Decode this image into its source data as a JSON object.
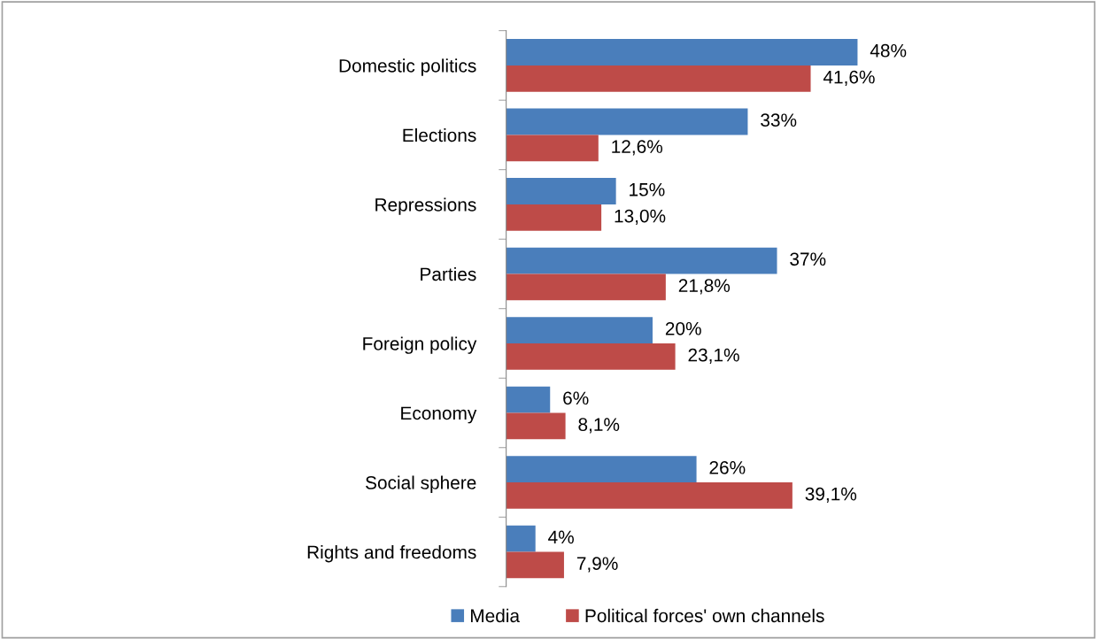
{
  "chart_data": {
    "type": "bar",
    "orientation": "horizontal",
    "categories": [
      "Domestic politics",
      "Elections",
      "Repressions",
      "Parties",
      "Foreign policy",
      "Economy",
      "Social sphere",
      "Rights and freedoms"
    ],
    "series": [
      {
        "name": "Media",
        "color": "#4a7ebb",
        "values": [
          48,
          33,
          15,
          37,
          20,
          6,
          26,
          4
        ],
        "value_labels": [
          "48%",
          "33%",
          "15%",
          "37%",
          "20%",
          "6%",
          "26%",
          "4%"
        ]
      },
      {
        "name": "Political forces' own channels",
        "color": "#be4b48",
        "values": [
          41.6,
          12.6,
          13.0,
          21.8,
          23.1,
          8.1,
          39.1,
          7.9
        ],
        "value_labels": [
          "41,6%",
          "12,6%",
          "13,0%",
          "21,8%",
          "23,1%",
          "8,1%",
          "39,1%",
          "7,9%"
        ]
      }
    ],
    "tick_labels": "y",
    "grid": false,
    "legend": "bottom"
  }
}
